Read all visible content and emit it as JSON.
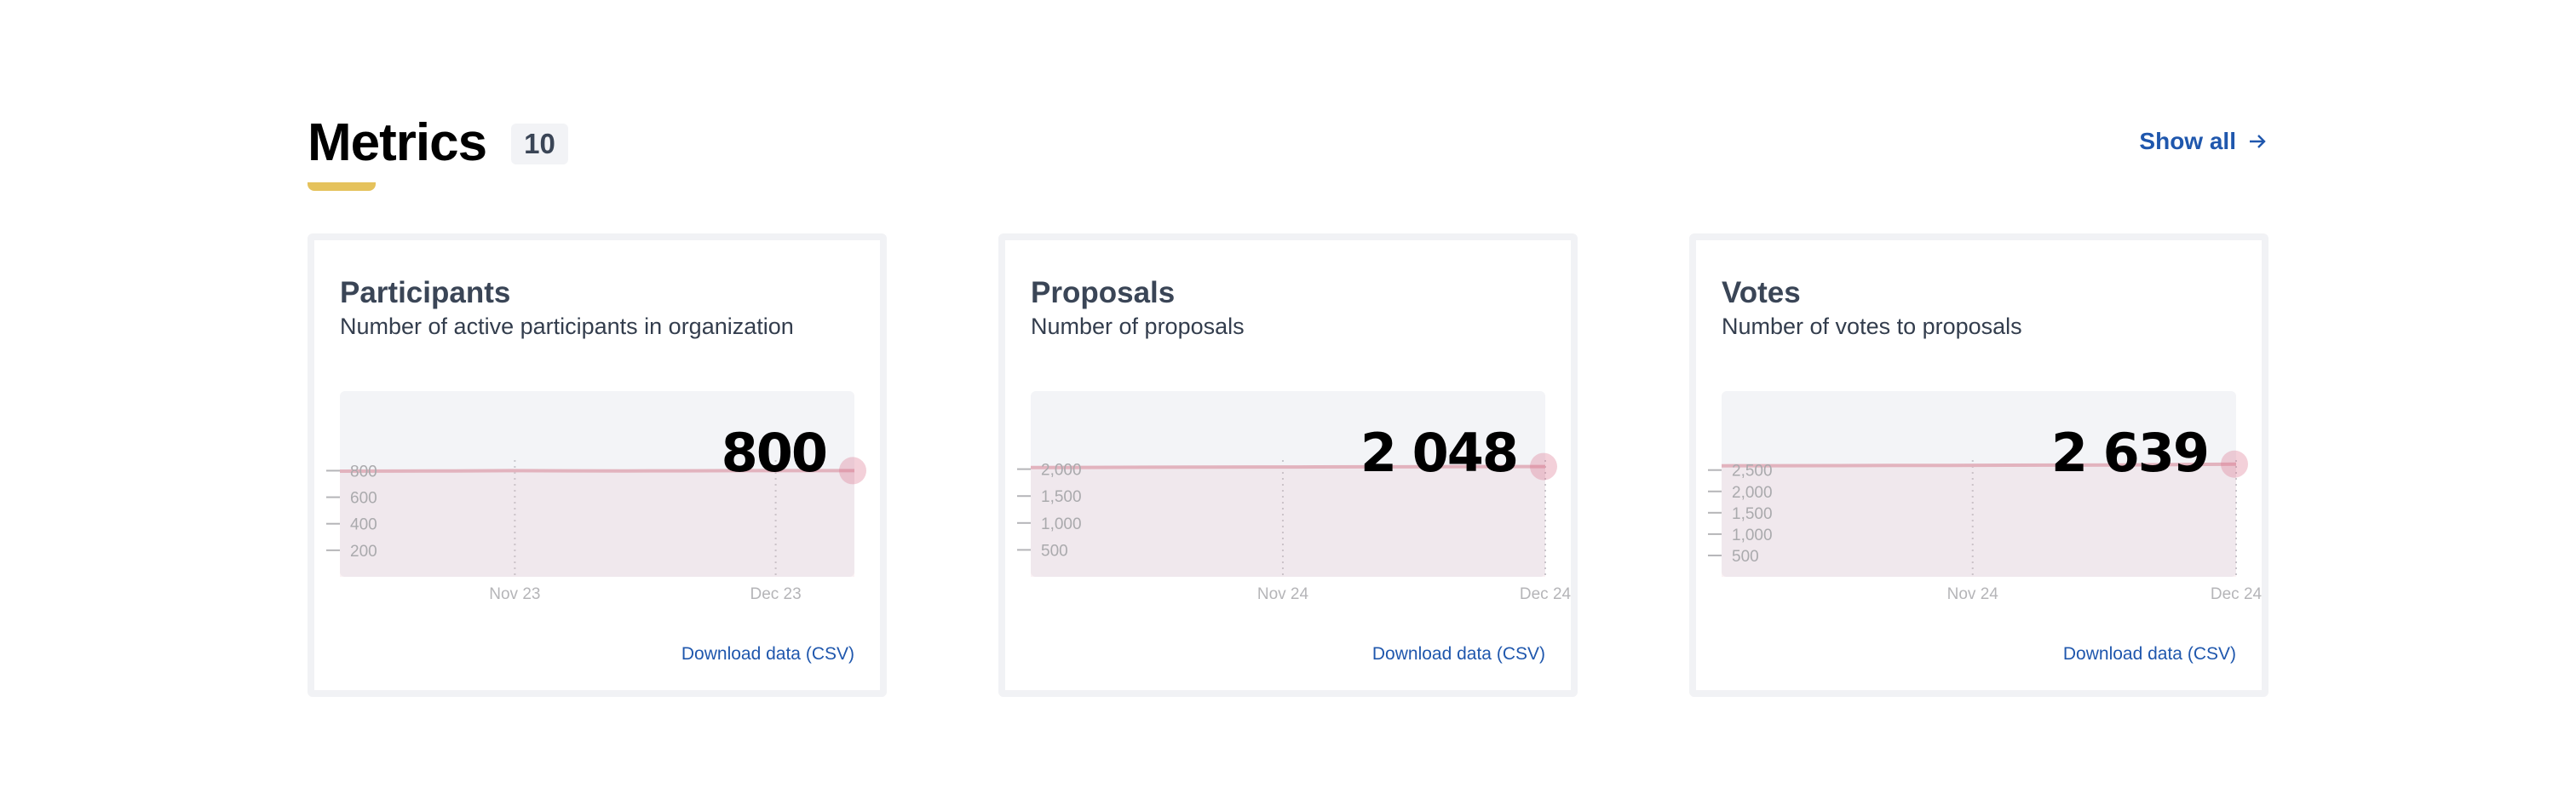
{
  "header": {
    "title": "Metrics",
    "count": "10",
    "show_all": "Show all",
    "accent": "#e5c25c",
    "link_color": "#1f57ad"
  },
  "chart_data": [
    {
      "type": "area",
      "title": "Participants",
      "subtitle": "Number of active participants in organization",
      "current_value": "800",
      "values": [
        796,
        797,
        798,
        800,
        799,
        798,
        799,
        800,
        800,
        800
      ],
      "yticks": [
        800,
        600,
        400,
        200
      ],
      "ytick_labels": [
        "800",
        "600",
        "400",
        "200"
      ],
      "ylim": [
        0,
        1400
      ],
      "xtick_labels": [
        "Nov 23",
        "Dec 23"
      ],
      "grid": "vertical dotted",
      "download": "Download data (CSV)",
      "color": "#e2b3be"
    },
    {
      "type": "area",
      "title": "Proposals",
      "subtitle": "Number of proposals",
      "current_value": "2 048",
      "values": [
        2030,
        2032,
        2035,
        2037,
        2039,
        2041,
        2043,
        2045,
        2047,
        2048
      ],
      "yticks": [
        2000,
        1500,
        1000,
        500
      ],
      "ytick_labels": [
        "2,000",
        "1,500",
        "1,000",
        "500"
      ],
      "ylim": [
        0,
        3450
      ],
      "xtick_labels": [
        "Nov 24",
        "Dec 24"
      ],
      "grid": "vertical dotted",
      "download": "Download data (CSV)",
      "color": "#e2b3be"
    },
    {
      "type": "area",
      "title": "Votes",
      "subtitle": "Number of votes to proposals",
      "current_value": "2 639",
      "values": [
        2600,
        2602,
        2605,
        2608,
        2610,
        2613,
        2616,
        2620,
        2630,
        2639
      ],
      "yticks": [
        2500,
        2000,
        1500,
        1000,
        500
      ],
      "ytick_labels": [
        "2,500",
        "2,000",
        "1,500",
        "1,000",
        "500"
      ],
      "ylim": [
        0,
        4350
      ],
      "xtick_labels": [
        "Nov 24",
        "Dec 24"
      ],
      "grid": "vertical dotted",
      "download": "Download data (CSV)",
      "color": "#e2b3be"
    }
  ]
}
